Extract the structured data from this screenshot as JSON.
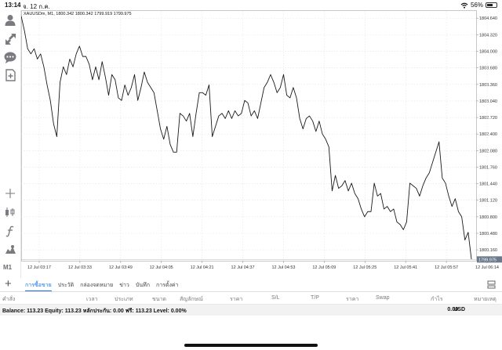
{
  "status_bar": {
    "time": "13:14",
    "date": "จ. 12 ก.ค.",
    "battery": "56%"
  },
  "toolbar": {
    "icons": [
      "crosshair-icon",
      "indicators-icon",
      "function-icon",
      "objects-icon"
    ],
    "period": "M1"
  },
  "chart": {
    "info": "XAUUSDm, M1, 1800.342 1800.342 1799.919 1799.975",
    "price_labels": [
      "1804.640",
      "1804.320",
      "1804.000",
      "1803.680",
      "1803.360",
      "1803.040",
      "1802.720",
      "1802.400",
      "1802.080",
      "1801.760",
      "1801.440",
      "1801.120",
      "1800.800",
      "1800.480",
      "1800.160"
    ],
    "current_price": "1799.975",
    "time_labels": [
      "12 Jul 03:17",
      "12 Jul 03:33",
      "12 Jul 03:49",
      "12 Jul 04:05",
      "12 Jul 04:21",
      "12 Jul 04:37",
      "12 Jul 04:53",
      "12 Jul 05:09",
      "12 Jul 05:25",
      "12 Jul 05:41",
      "12 Jul 05:57",
      "12 Jul 06:14"
    ]
  },
  "chart_data": {
    "type": "line",
    "title": "XAUUSDm, M1",
    "xlabel": "",
    "ylabel": "",
    "ylim": [
      1799.95,
      1804.78
    ],
    "series": [
      {
        "name": "XAUUSDm",
        "values": [
          1804.68,
          1804.4,
          1804.05,
          1803.95,
          1804.05,
          1803.85,
          1803.95,
          1803.7,
          1803.35,
          1803.05,
          1802.6,
          1802.35,
          1803.4,
          1803.7,
          1803.55,
          1803.85,
          1803.7,
          1803.95,
          1804.1,
          1803.9,
          1803.9,
          1803.75,
          1803.45,
          1803.7,
          1803.45,
          1803.8,
          1803.5,
          1803.15,
          1803.55,
          1803.45,
          1803.1,
          1803.05,
          1803.35,
          1803.15,
          1803.3,
          1803.55,
          1803.05,
          1803.3,
          1803.6,
          1803.4,
          1803.3,
          1803.2,
          1802.85,
          1802.5,
          1802.3,
          1802.55,
          1802.2,
          1802.05,
          1802.05,
          1802.8,
          1802.75,
          1802.65,
          1802.8,
          1802.35,
          1802.8,
          1803.2,
          1803.2,
          1803.15,
          1803.35,
          1802.35,
          1802.55,
          1802.75,
          1802.8,
          1802.7,
          1802.85,
          1802.7,
          1802.85,
          1802.75,
          1802.8,
          1803.05,
          1803.0,
          1802.75,
          1802.85,
          1802.7,
          1803.0,
          1803.3,
          1803.4,
          1803.55,
          1803.4,
          1803.2,
          1803.3,
          1803.55,
          1803.15,
          1803.1,
          1803.3,
          1803.1,
          1802.7,
          1802.5,
          1802.7,
          1802.75,
          1802.65,
          1802.45,
          1802.65,
          1802.4,
          1802.3,
          1802.15,
          1801.3,
          1801.6,
          1801.35,
          1801.4,
          1801.5,
          1801.3,
          1801.45,
          1801.25,
          1801.15,
          1800.95,
          1800.8,
          1800.9,
          1800.9,
          1801.45,
          1801.2,
          1801.25,
          1800.95,
          1801.0,
          1800.9,
          1800.95,
          1800.7,
          1800.65,
          1800.55,
          1800.7,
          1801.45,
          1801.4,
          1801.35,
          1801.2,
          1801.4,
          1801.55,
          1801.65,
          1801.85,
          1802.05,
          1802.25,
          1801.55,
          1801.45,
          1801.2,
          1801.0,
          1801.15,
          1800.9,
          1800.8,
          1800.35,
          1800.5,
          1799.98
        ]
      }
    ]
  },
  "tabs": {
    "items": [
      "การซื้อขาย",
      "ประวัติ",
      "กล่องจดหมาย",
      "ข่าว",
      "บันทึก",
      "การตั้งค่า"
    ],
    "active_index": 0
  },
  "columns": [
    "คำสั่ง",
    "เวลา",
    "ประเภท",
    "ขนาด",
    "สัญลักษณ์",
    "ราคา",
    "S/L",
    "T/P",
    "ราคา",
    "Swap",
    "กำไร",
    "หมายเหตุ"
  ],
  "balance": {
    "text": "Balance: 113.23 Equity: 113.23 หลักประกัน: 0.00 ฟรี: 113.23 Level: 0.00%",
    "profit": "0.00",
    "currency": "USD"
  },
  "colors": {
    "accent": "#1a73e8",
    "line": "#1a1a1a",
    "grid": "#e4e4e4"
  }
}
